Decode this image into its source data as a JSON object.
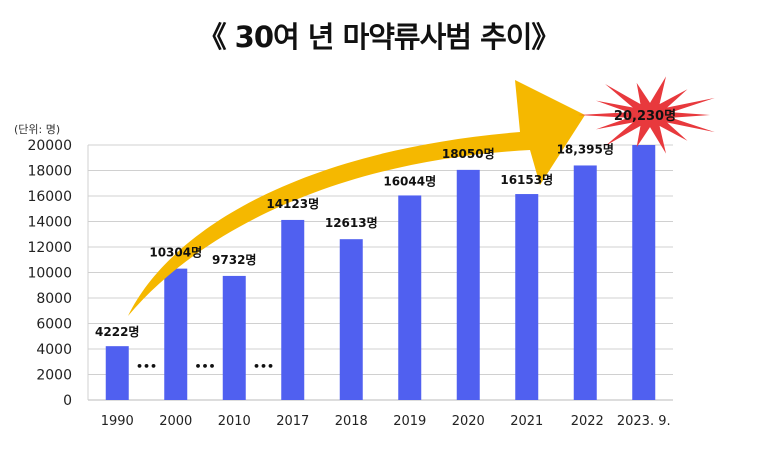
{
  "title": "《 30여 년 마약류사범 추이》",
  "chart_data": {
    "type": "bar",
    "title": "《 30여 년 마약류사범 추이》",
    "unit_label": "(단위: 명)",
    "categories": [
      "1990",
      "2000",
      "2010",
      "2017",
      "2018",
      "2019",
      "2020",
      "2021",
      "2022",
      "2023. 9."
    ],
    "values": [
      4222,
      10304,
      9732,
      14123,
      12613,
      16044,
      18050,
      16153,
      18395,
      20230
    ],
    "data_labels": [
      "4222명",
      "10304명",
      "9732명",
      "14123명",
      "12613명",
      "16044명",
      "18050명",
      "16153명",
      "18,395명",
      "20,230명"
    ],
    "ylim": [
      0,
      20000
    ],
    "yticks": [
      0,
      2000,
      4000,
      6000,
      8000,
      10000,
      12000,
      14000,
      16000,
      18000,
      20000
    ],
    "gap_markers": [
      "•••",
      "•••",
      "•••"
    ],
    "grid": true,
    "legend": "none",
    "bar_color": "#5060F0",
    "arrow_color": "#F5B800",
    "burst_color": "#E8393D"
  }
}
